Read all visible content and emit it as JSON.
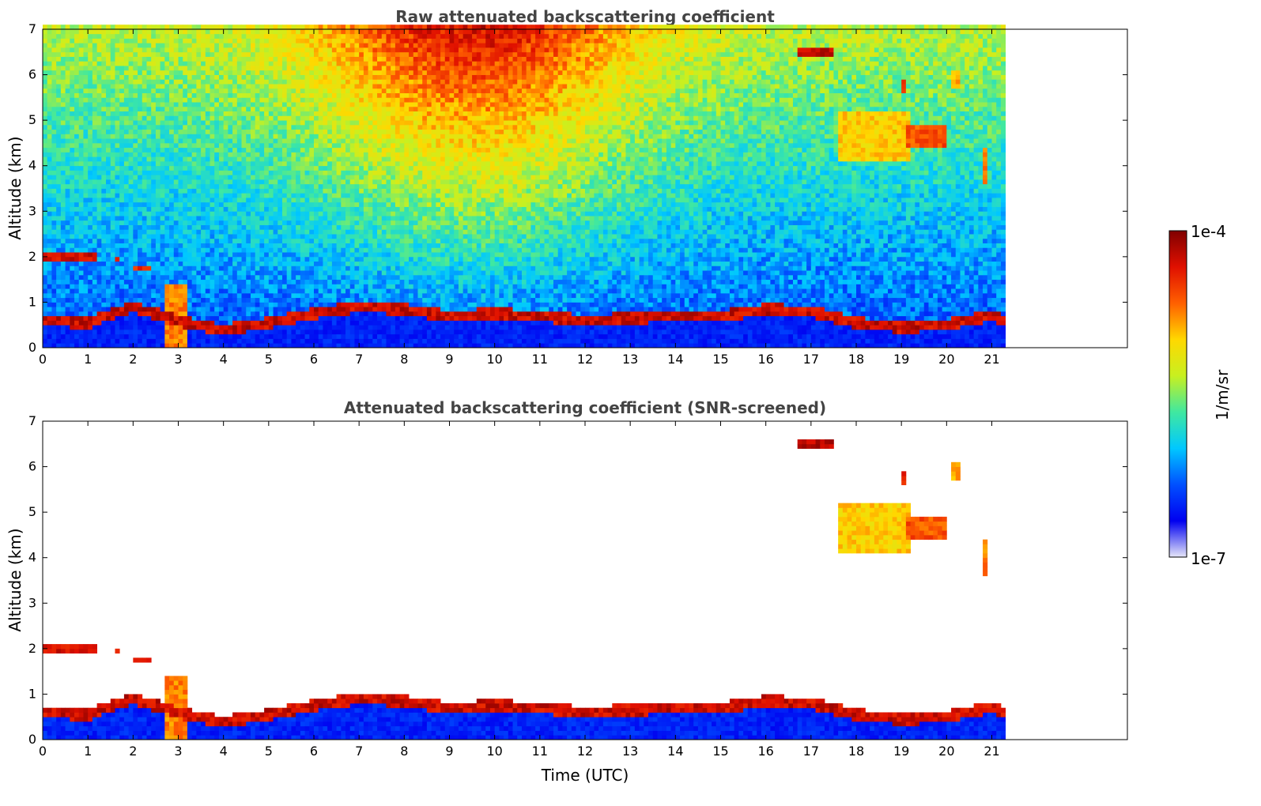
{
  "chart_data": [
    {
      "type": "heatmap",
      "title": "Raw attenuated backscattering coefficient",
      "xlabel": "",
      "ylabel": "Altitude (km)",
      "xlim": [
        0,
        24
      ],
      "ylim": [
        0,
        7
      ],
      "x_ticks": [
        "0",
        "1",
        "2",
        "3",
        "4",
        "5",
        "6",
        "7",
        "8",
        "9",
        "10",
        "11",
        "12",
        "13",
        "14",
        "15",
        "16",
        "17",
        "18",
        "19",
        "20",
        "21"
      ],
      "y_ticks": [
        "0",
        "1",
        "2",
        "3",
        "4",
        "5",
        "6",
        "7"
      ],
      "data_extent_hours": [
        0,
        21.3
      ],
      "screened": false
    },
    {
      "type": "heatmap",
      "title": "Attenuated backscattering coefficient (SNR-screened)",
      "xlabel": "Time (UTC)",
      "ylabel": "Altitude (km)",
      "xlim": [
        0,
        24
      ],
      "ylim": [
        0,
        7
      ],
      "x_ticks": [
        "0",
        "1",
        "2",
        "3",
        "4",
        "5",
        "6",
        "7",
        "8",
        "9",
        "10",
        "11",
        "12",
        "13",
        "14",
        "15",
        "16",
        "17",
        "18",
        "19",
        "20",
        "21"
      ],
      "y_ticks": [
        "0",
        "1",
        "2",
        "3",
        "4",
        "5",
        "6",
        "7"
      ],
      "data_extent_hours": [
        0,
        21.3
      ],
      "screened": true
    }
  ],
  "colorbar": {
    "label": "1/m/sr",
    "max_label": "1e-4",
    "min_label": "1e-7",
    "scale": "log",
    "colormap": [
      "#e6e6f8",
      "#0000f0",
      "#0050ff",
      "#00c8ff",
      "#40e8a0",
      "#c8f020",
      "#ffd800",
      "#ff6000",
      "#e01000",
      "#800000"
    ]
  },
  "features": {
    "boundary_layer": [
      [
        0,
        0.6
      ],
      [
        1,
        0.55
      ],
      [
        2,
        0.9
      ],
      [
        3,
        0.6
      ],
      [
        4,
        0.4
      ],
      [
        5,
        0.55
      ],
      [
        6,
        0.75
      ],
      [
        7,
        0.9
      ],
      [
        8,
        0.85
      ],
      [
        9,
        0.7
      ],
      [
        10,
        0.75
      ],
      [
        11,
        0.7
      ],
      [
        12,
        0.6
      ],
      [
        13,
        0.65
      ],
      [
        14,
        0.7
      ],
      [
        15,
        0.7
      ],
      [
        16,
        0.85
      ],
      [
        17,
        0.8
      ],
      [
        18,
        0.55
      ],
      [
        19,
        0.45
      ],
      [
        20,
        0.5
      ],
      [
        21,
        0.7
      ],
      [
        21.3,
        0.6
      ]
    ],
    "cloud_layers": [
      {
        "x0": 0.0,
        "x1": 1.15,
        "y0": 1.95,
        "y1": 2.15,
        "level": 0.95
      },
      {
        "x0": 1.6,
        "x1": 1.7,
        "y0": 1.92,
        "y1": 2.05,
        "level": 0.9
      },
      {
        "x0": 2.05,
        "x1": 2.4,
        "y0": 1.7,
        "y1": 1.85,
        "level": 0.9
      },
      {
        "x0": 2.75,
        "x1": 3.2,
        "y0": 0.0,
        "y1": 1.4,
        "level": 0.8
      },
      {
        "x0": 16.7,
        "x1": 17.5,
        "y0": 6.4,
        "y1": 6.6,
        "level": 0.98
      },
      {
        "x0": 17.6,
        "x1": 19.2,
        "y0": 4.1,
        "y1": 5.2,
        "level": 0.72
      },
      {
        "x0": 19.1,
        "x1": 20.0,
        "y0": 4.4,
        "y1": 4.9,
        "level": 0.85
      },
      {
        "x0": 19.0,
        "x1": 19.1,
        "y0": 5.6,
        "y1": 5.9,
        "level": 0.9
      },
      {
        "x0": 20.1,
        "x1": 20.3,
        "y0": 5.7,
        "y1": 6.1,
        "level": 0.75
      },
      {
        "x0": 20.8,
        "x1": 20.9,
        "y0": 3.6,
        "y1": 4.4,
        "level": 0.8
      }
    ]
  }
}
